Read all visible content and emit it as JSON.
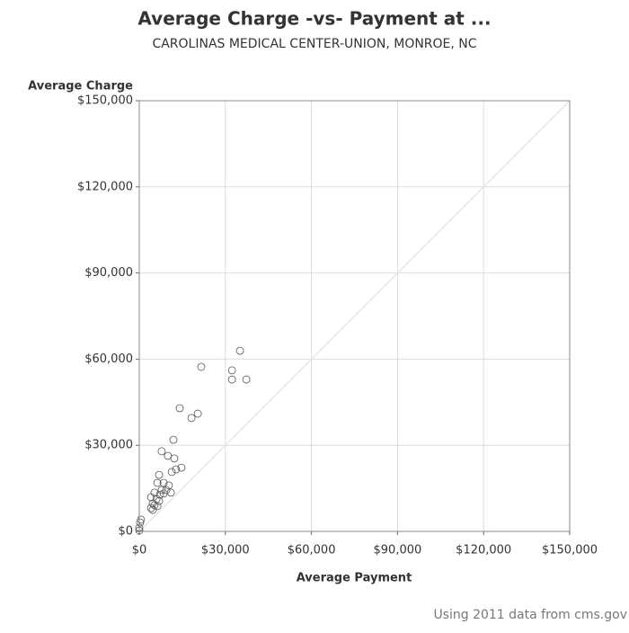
{
  "chart_data": {
    "type": "scatter",
    "title": "Average Charge -vs- Payment at ...",
    "subtitle": "CAROLINAS MEDICAL CENTER-UNION, MONROE, NC",
    "x_label": "Average Payment",
    "y_label": "Average Charge",
    "footnote": "Using 2011 data from cms.gov",
    "xlim": [
      0,
      150000
    ],
    "ylim": [
      0,
      150000
    ],
    "xticks": [
      {
        "value": 0,
        "label": "$0"
      },
      {
        "value": 30000,
        "label": "$30,000"
      },
      {
        "value": 60000,
        "label": "$60,000"
      },
      {
        "value": 90000,
        "label": "$90,000"
      },
      {
        "value": 120000,
        "label": "$120,000"
      },
      {
        "value": 150000,
        "label": "$150,000"
      }
    ],
    "yticks": [
      {
        "value": 0,
        "label": "$0"
      },
      {
        "value": 30000,
        "label": "$30,000"
      },
      {
        "value": 60000,
        "label": "$60,000"
      },
      {
        "value": 90000,
        "label": "$90,000"
      },
      {
        "value": 120000,
        "label": "$120,000"
      },
      {
        "value": 150000,
        "label": "$150,000"
      }
    ],
    "grid": true,
    "diagonal_line": true,
    "marker_color": "#555555",
    "x": [
      35100,
      21600,
      32300,
      32300,
      37300,
      14100,
      20400,
      18200,
      11900,
      7800,
      10000,
      12200,
      14700,
      12800,
      11300,
      6900,
      6300,
      8500,
      10300,
      9400,
      5300,
      7200,
      8500,
      4100,
      6000,
      6900,
      4700,
      5300,
      6300,
      4100,
      4700,
      600,
      300,
      0,
      0,
      7800,
      11000
    ],
    "values": [
      62900,
      57300,
      56100,
      52900,
      52900,
      42900,
      41000,
      39500,
      31900,
      27900,
      26300,
      25400,
      22200,
      21600,
      20700,
      19700,
      16900,
      16900,
      16000,
      14400,
      13500,
      12800,
      13200,
      11900,
      11300,
      10600,
      9700,
      9100,
      8800,
      8100,
      7500,
      4100,
      3100,
      1300,
      300,
      14400,
      13500
    ]
  }
}
